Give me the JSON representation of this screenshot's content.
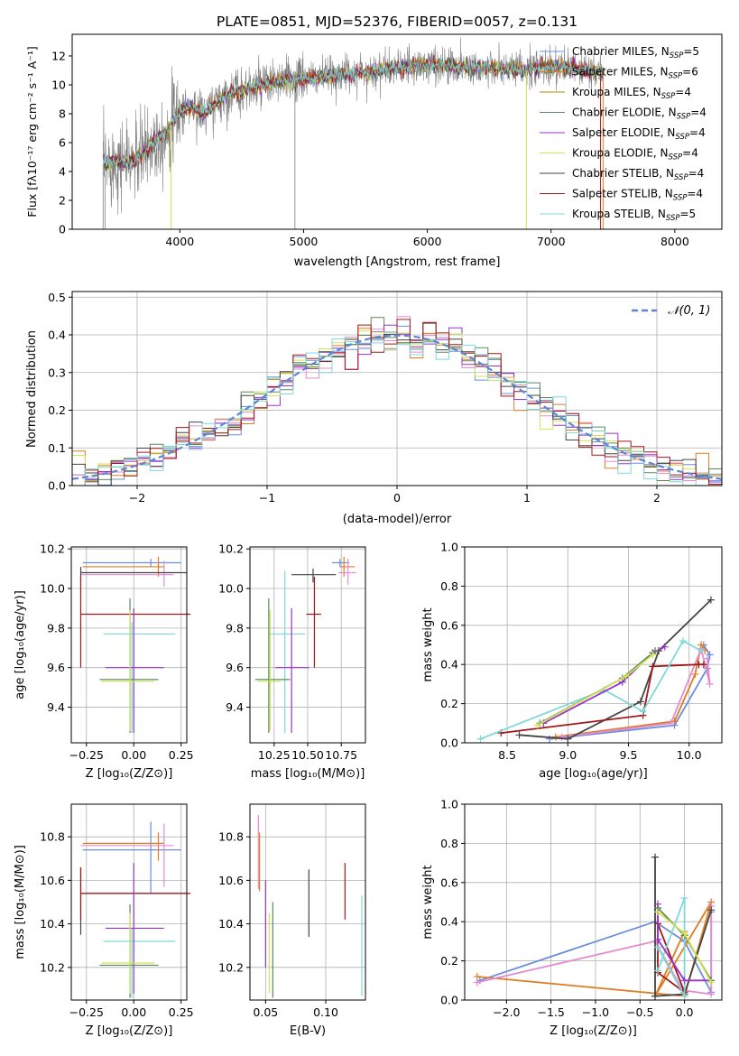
{
  "chart_data": [
    {
      "id": "spectrum",
      "type": "line",
      "title": "PLATE=0851, MJD=52376, FIBERID=0057, z=0.131",
      "xlabel": "wavelength [Angstrom, rest frame]",
      "ylabel": "Flux [fλ10⁻¹⁷ erg cm⁻² s⁻¹ A⁻¹]",
      "xlim": [
        3130,
        8380
      ],
      "ylim": [
        0,
        13.5
      ],
      "xticks": [
        "4000",
        "5000",
        "6000",
        "7000",
        "8000"
      ],
      "yticks": [
        "0",
        "2",
        "4",
        "6",
        "8",
        "10",
        "12"
      ],
      "grid": false,
      "legend_position": "right",
      "series": [
        {
          "name": "Chabrier MILES, N_SSP=5",
          "color": "#6a8fdc"
        },
        {
          "name": "Salpeter MILES, N_SSP=6",
          "color": "#e07b1f"
        },
        {
          "name": "Kroupa MILES, N_SSP=4",
          "color": "#b8860b"
        },
        {
          "name": "Chabrier ELODIE, N_SSP=4",
          "color": "#5a8a5a"
        },
        {
          "name": "Salpeter ELODIE, N_SSP=4",
          "color": "#9a32cd"
        },
        {
          "name": "Kroupa ELODIE, N_SSP=4",
          "color": "#d4e157"
        },
        {
          "name": "Chabrier STELIB, N_SSP=4",
          "color": "#444444"
        },
        {
          "name": "Salpeter STELIB, N_SSP=4",
          "color": "#a01818"
        },
        {
          "name": "Kroupa STELIB, N_SSP=5",
          "color": "#7fd8d8"
        }
      ],
      "continuum": {
        "x": [
          3380,
          3500,
          3600,
          3700,
          3800,
          3900,
          4000,
          4100,
          4200,
          4300,
          4400,
          4600,
          4800,
          5000,
          5200,
          5400,
          5600,
          5800,
          6000,
          6200,
          6400,
          6600,
          6800,
          7000,
          7200,
          7400
        ],
        "y": [
          4.5,
          4.8,
          4.6,
          5.2,
          6.2,
          6.8,
          8.2,
          8.5,
          8.0,
          8.8,
          9.4,
          9.8,
          10.2,
          10.4,
          10.6,
          10.8,
          11.0,
          11.2,
          11.4,
          11.3,
          11.2,
          11.1,
          11.0,
          11.3,
          11.1,
          10.9
        ]
      },
      "data_line_color": "#808080"
    },
    {
      "id": "residuals",
      "type": "histogram",
      "xlabel": "(data-model)/error",
      "ylabel": "Normed distribution",
      "xlim": [
        -2.5,
        2.5
      ],
      "ylim": [
        0,
        0.515
      ],
      "xticks": [
        -2,
        -1,
        0,
        1,
        2
      ],
      "yticks": [
        0.0,
        0.1,
        0.2,
        0.3,
        0.4,
        0.5
      ],
      "grid": true,
      "legend": "𝒩(0, 1)",
      "legend_position": "top-right",
      "reference_curve": {
        "name": "N(0,1)",
        "color": "#5b86d6",
        "style": "dashed"
      },
      "bins": {
        "start": -2.5,
        "width": 0.1
      }
    },
    {
      "id": "age-vs-Z",
      "type": "errorbar",
      "xlabel": "Z [log₁₀(Z/Z⊙)]",
      "ylabel": "age  [log₁₀(age/yr)]",
      "xlim": [
        -0.33,
        0.28
      ],
      "ylim": [
        9.22,
        10.21
      ],
      "xticks": [
        "−0.25",
        "0.00",
        "0.25"
      ],
      "yticks": [
        "9.4",
        "9.6",
        "9.8",
        "10.0",
        "10.2"
      ],
      "grid": true,
      "points": [
        {
          "x": 0.09,
          "y": 10.13,
          "xerr": [
            0.36,
            0.16
          ],
          "yerr": [
            0.02,
            0.02
          ],
          "color": "#6a8fdc"
        },
        {
          "x": 0.13,
          "y": 10.11,
          "xerr": [
            0.4,
            0.03
          ],
          "yerr": [
            0.05,
            0.05
          ],
          "color": "#e07b1f"
        },
        {
          "x": 0.16,
          "y": 10.07,
          "xerr": [
            0.44,
            0.05
          ],
          "yerr": [
            0.06,
            0.07
          ],
          "color": "#e48bd0"
        },
        {
          "x": -0.28,
          "y": 10.08,
          "xerr": [
            0.0,
            0.56
          ],
          "yerr": [
            0.04,
            0.03
          ],
          "color": "#444444"
        },
        {
          "x": -0.28,
          "y": 9.87,
          "xerr": [
            0.0,
            0.58
          ],
          "yerr": [
            0.27,
            0.19
          ],
          "color": "#a01818"
        },
        {
          "x": -0.01,
          "y": 9.77,
          "xerr": [
            0.15,
            0.23
          ],
          "yerr": [
            0.5,
            0.06
          ],
          "color": "#7fd8d8"
        },
        {
          "x": 0.0,
          "y": 9.6,
          "xerr": [
            0.15,
            0.16
          ],
          "yerr": [
            0.33,
            0.3
          ],
          "color": "#9a32cd"
        },
        {
          "x": -0.02,
          "y": 9.54,
          "xerr": [
            0.16,
            0.15
          ],
          "yerr": [
            0.27,
            0.41
          ],
          "color": "#5a8a5a"
        },
        {
          "x": -0.02,
          "y": 9.53,
          "xerr": [
            0.15,
            0.13
          ],
          "yerr": [
            0.25,
            0.36
          ],
          "color": "#d4e157"
        }
      ]
    },
    {
      "id": "age-vs-mass",
      "type": "errorbar",
      "xlabel": "mass [log₁₀(M/M⊙)]",
      "ylabel": "",
      "xlim": [
        10.07,
        10.93
      ],
      "ylim": [
        9.22,
        10.21
      ],
      "xticks": [
        "10.25",
        "10.50",
        "10.75"
      ],
      "yticks": [
        "9.4",
        "9.6",
        "9.8",
        "10.0",
        "10.2"
      ],
      "grid": true,
      "points": [
        {
          "x": 10.74,
          "y": 10.13,
          "xerr": [
            0.06,
            0.07
          ],
          "yerr": [
            0.02,
            0.02
          ],
          "color": "#6a8fdc"
        },
        {
          "x": 10.77,
          "y": 10.11,
          "xerr": [
            0.03,
            0.08
          ],
          "yerr": [
            0.05,
            0.05
          ],
          "color": "#e07b1f"
        },
        {
          "x": 10.8,
          "y": 10.08,
          "xerr": [
            0.07,
            0.06
          ],
          "yerr": [
            0.06,
            0.07
          ],
          "color": "#e48bd0"
        },
        {
          "x": 10.54,
          "y": 10.07,
          "xerr": [
            0.16,
            0.17
          ],
          "yerr": [
            0.04,
            0.03
          ],
          "color": "#444444"
        },
        {
          "x": 10.55,
          "y": 9.87,
          "xerr": [
            0.06,
            0.05
          ],
          "yerr": [
            0.27,
            0.19
          ],
          "color": "#a01818"
        },
        {
          "x": 10.33,
          "y": 9.77,
          "xerr": [
            0.12,
            0.15
          ],
          "yerr": [
            0.5,
            0.32
          ],
          "color": "#7fd8d8"
        },
        {
          "x": 10.38,
          "y": 9.6,
          "xerr": [
            0.12,
            0.13
          ],
          "yerr": [
            0.33,
            0.3
          ],
          "color": "#9a32cd"
        },
        {
          "x": 10.21,
          "y": 9.54,
          "xerr": [
            0.1,
            0.16
          ],
          "yerr": [
            0.27,
            0.41
          ],
          "color": "#5a8a5a"
        },
        {
          "x": 10.22,
          "y": 9.53,
          "xerr": [
            0.09,
            0.08
          ],
          "yerr": [
            0.25,
            0.36
          ],
          "color": "#d4e157"
        }
      ]
    },
    {
      "id": "mass-weight-vs-age",
      "type": "line",
      "xlabel": "age  [log₁₀(age/yr)]",
      "ylabel": "mass weight",
      "xlim": [
        8.15,
        10.27
      ],
      "ylim": [
        0,
        1.0
      ],
      "xticks": [
        "8.5",
        "9.0",
        "9.5",
        "10.0"
      ],
      "yticks": [
        "0.0",
        "0.2",
        "0.4",
        "0.6",
        "0.8",
        "1.0"
      ],
      "grid": true,
      "series": [
        {
          "color": "#6a8fdc",
          "x": [
            8.85,
            9.88,
            10.15,
            10.17,
            10.12
          ],
          "y": [
            0.02,
            0.09,
            0.38,
            0.45,
            0.5
          ]
        },
        {
          "color": "#e07b1f",
          "x": [
            8.9,
            9.88,
            10.05,
            10.1,
            10.13
          ],
          "y": [
            0.03,
            0.11,
            0.35,
            0.5,
            0.47
          ]
        },
        {
          "color": "#e48bd0",
          "x": [
            8.95,
            9.85,
            10.1,
            10.17,
            10.15
          ],
          "y": [
            0.03,
            0.1,
            0.48,
            0.3,
            0.43
          ]
        },
        {
          "color": "#444444",
          "x": [
            8.6,
            9.0,
            9.6,
            9.75,
            10.18
          ],
          "y": [
            0.04,
            0.02,
            0.21,
            0.47,
            0.73
          ]
        },
        {
          "color": "#a01818",
          "x": [
            8.45,
            9.62,
            9.7,
            10.08,
            10.12
          ],
          "y": [
            0.05,
            0.14,
            0.39,
            0.4,
            0.4
          ]
        },
        {
          "color": "#7fd8d8",
          "x": [
            8.28,
            9.3,
            9.62,
            9.95,
            10.1
          ],
          "y": [
            0.02,
            0.27,
            0.16,
            0.52,
            0.47
          ]
        },
        {
          "color": "#9a32cd",
          "x": [
            8.8,
            9.45,
            9.7,
            9.8
          ],
          "y": [
            0.1,
            0.31,
            0.46,
            0.49
          ]
        },
        {
          "color": "#5a8a5a",
          "x": [
            8.77,
            9.45,
            9.72
          ],
          "y": [
            0.1,
            0.33,
            0.47
          ]
        },
        {
          "color": "#d4e157",
          "x": [
            8.75,
            9.48,
            9.7
          ],
          "y": [
            0.09,
            0.34,
            0.45
          ]
        }
      ]
    },
    {
      "id": "mass-vs-Z",
      "type": "errorbar",
      "xlabel": "Z [log₁₀(Z/Z⊙)]",
      "ylabel": "mass [log₁₀(M/M⊙)]",
      "xlim": [
        -0.33,
        0.28
      ],
      "ylim": [
        10.05,
        10.95
      ],
      "xticks": [
        "−0.25",
        "0.00",
        "0.25"
      ],
      "yticks": [
        "10.2",
        "10.4",
        "10.6",
        "10.8"
      ],
      "grid": true,
      "points": [
        {
          "x": 0.09,
          "y": 10.74,
          "xerr": [
            0.36,
            0.16
          ],
          "yerr": [
            0.2,
            0.13
          ],
          "color": "#6a8fdc"
        },
        {
          "x": 0.13,
          "y": 10.77,
          "xerr": [
            0.4,
            0.03
          ],
          "yerr": [
            0.08,
            0.05
          ],
          "color": "#e07b1f"
        },
        {
          "x": 0.16,
          "y": 10.76,
          "xerr": [
            0.44,
            0.05
          ],
          "yerr": [
            0.19,
            0.1
          ],
          "color": "#e48bd0"
        },
        {
          "x": -0.28,
          "y": 10.54,
          "xerr": [
            0.0,
            0.56
          ],
          "yerr": [
            0.19,
            0.12
          ],
          "color": "#444444"
        },
        {
          "x": -0.28,
          "y": 10.54,
          "xerr": [
            0.0,
            0.58
          ],
          "yerr": [
            0.12,
            0.12
          ],
          "color": "#a01818"
        },
        {
          "x": -0.01,
          "y": 10.32,
          "xerr": [
            0.15,
            0.23
          ],
          "yerr": [
            0.26,
            0.06
          ],
          "color": "#7fd8d8"
        },
        {
          "x": 0.0,
          "y": 10.38,
          "xerr": [
            0.15,
            0.16
          ],
          "yerr": [
            0.3,
            0.3
          ],
          "color": "#9a32cd"
        },
        {
          "x": -0.02,
          "y": 10.21,
          "xerr": [
            0.16,
            0.15
          ],
          "yerr": [
            0.15,
            0.28
          ],
          "color": "#5a8a5a"
        },
        {
          "x": -0.02,
          "y": 10.22,
          "xerr": [
            0.15,
            0.13
          ],
          "yerr": [
            0.14,
            0.23
          ],
          "color": "#d4e157"
        }
      ]
    },
    {
      "id": "ebv",
      "type": "errorbar",
      "xlabel": "E(B-V)",
      "ylabel": "",
      "xlim": [
        0.037,
        0.133
      ],
      "ylim": [
        10.05,
        10.95
      ],
      "xticks": [
        "0.05",
        "0.10"
      ],
      "yticks": [
        "10.2",
        "10.4",
        "10.6",
        "10.8"
      ],
      "grid": true,
      "points": [
        {
          "x": 0.044,
          "y": 10.73,
          "yerr": [
            0.17,
            0.17
          ],
          "color": "#e48bd0"
        },
        {
          "x": 0.045,
          "y": 10.72,
          "yerr": [
            0.17,
            0.1
          ],
          "color": "#e07b1f"
        },
        {
          "x": 0.05,
          "y": 10.4,
          "yerr": [
            0.2,
            0.2
          ],
          "color": "#9a32cd"
        },
        {
          "x": 0.053,
          "y": 10.28,
          "yerr": [
            0.2,
            0.17
          ],
          "color": "#d4e157"
        },
        {
          "x": 0.056,
          "y": 10.28,
          "yerr": [
            0.22,
            0.22
          ],
          "color": "#5a8a5a"
        },
        {
          "x": 0.086,
          "y": 10.5,
          "yerr": [
            0.16,
            0.15
          ],
          "color": "#444444"
        },
        {
          "x": 0.116,
          "y": 10.55,
          "yerr": [
            0.13,
            0.13
          ],
          "color": "#a01818"
        },
        {
          "x": 0.13,
          "y": 10.3,
          "yerr": [
            0.23,
            0.23
          ],
          "color": "#7fd8d8"
        }
      ]
    },
    {
      "id": "mass-weight-vs-Z",
      "type": "line",
      "xlabel": "Z [log₁₀(Z/Z⊙)]",
      "ylabel": "mass weight",
      "xlim": [
        -2.47,
        0.42
      ],
      "ylim": [
        0,
        1.0
      ],
      "xticks": [
        "−2.0",
        "−1.5",
        "−1.0",
        "−0.5",
        "0.0"
      ],
      "yticks": [
        "0.0",
        "0.2",
        "0.4",
        "0.6",
        "0.8",
        "1.0"
      ],
      "grid": true,
      "series": [
        {
          "color": "#6a8fdc",
          "x": [
            -2.3,
            -0.33,
            0.0,
            0.3,
            0.3
          ],
          "y": [
            0.1,
            0.4,
            0.3,
            0.04,
            0.45
          ]
        },
        {
          "color": "#e07b1f",
          "x": [
            -2.33,
            0.0,
            0.3,
            -0.33,
            0.0
          ],
          "y": [
            0.12,
            0.02,
            0.5,
            0.02,
            0.35
          ]
        },
        {
          "color": "#e48bd0",
          "x": [
            -2.33,
            -0.33,
            -0.02,
            0.3,
            0.3
          ],
          "y": [
            0.09,
            0.3,
            0.05,
            0.03,
            0.48
          ]
        },
        {
          "color": "#444444",
          "x": [
            -0.33,
            -0.33,
            0.0,
            0.3
          ],
          "y": [
            0.73,
            0.02,
            0.03,
            0.46
          ]
        },
        {
          "color": "#a01818",
          "x": [
            -0.3,
            -0.3,
            0.0,
            -0.3
          ],
          "y": [
            0.47,
            0.14,
            0.04,
            0.39
          ]
        },
        {
          "color": "#7fd8d8",
          "x": [
            -0.3,
            0.0,
            0.0,
            -0.3
          ],
          "y": [
            0.15,
            0.52,
            0.02,
            0.27
          ]
        },
        {
          "color": "#9a32cd",
          "x": [
            -0.3,
            -0.3,
            0.0,
            0.3
          ],
          "y": [
            0.49,
            0.31,
            0.1,
            0.1
          ]
        },
        {
          "color": "#5a8a5a",
          "x": [
            -0.3,
            0.0,
            0.3
          ],
          "y": [
            0.47,
            0.33,
            0.1
          ]
        },
        {
          "color": "#d4e157",
          "x": [
            -0.3,
            0.0,
            0.3
          ],
          "y": [
            0.45,
            0.34,
            0.09
          ]
        }
      ]
    }
  ]
}
